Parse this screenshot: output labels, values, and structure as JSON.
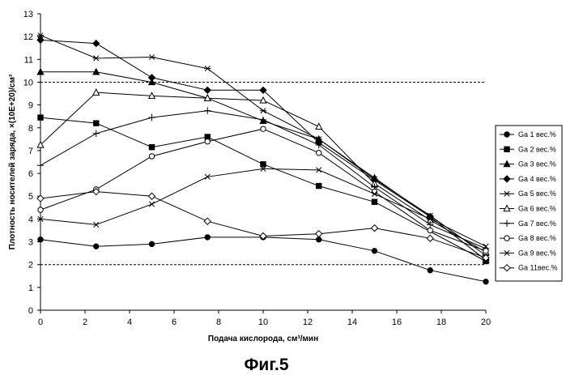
{
  "figure_caption": "Фиг.5",
  "chart_data": {
    "type": "line",
    "xlabel": "Подача кислорода, см³/мин",
    "ylabel": "Плотность носителей заряда, ×(10E+20)/см³",
    "xlim": [
      0,
      20
    ],
    "ylim": [
      0,
      13
    ],
    "x_ticks": [
      "0",
      "2",
      "4",
      "6",
      "8",
      "10",
      "12",
      "14",
      "16",
      "18",
      "20"
    ],
    "y_ticks": [
      "0",
      "1",
      "2",
      "3",
      "4",
      "5",
      "6",
      "7",
      "8",
      "9",
      "10",
      "11",
      "12",
      "13"
    ],
    "grid": false,
    "reference_lines": [
      2,
      10
    ],
    "legend_position": "right",
    "series": [
      {
        "name": "Ga 1 вес.%",
        "marker": "circle-filled",
        "x": [
          0,
          2.5,
          5,
          7.5,
          10,
          12.5,
          15,
          17.5,
          20
        ],
        "y": [
          3.1,
          2.8,
          2.9,
          3.2,
          3.2,
          3.1,
          2.6,
          1.75,
          1.25
        ]
      },
      {
        "name": "Ga 2 вес.%",
        "marker": "square-filled",
        "x": [
          0,
          2.5,
          5,
          7.5,
          10,
          12.5,
          15,
          20
        ],
        "y": [
          8.45,
          8.2,
          7.15,
          7.6,
          6.4,
          5.45,
          4.75,
          2.15
        ]
      },
      {
        "name": "Ga 3 вес.%",
        "marker": "triangle-filled",
        "x": [
          0,
          2.5,
          5,
          7.5,
          10,
          12.5,
          15,
          17.5,
          20
        ],
        "y": [
          10.45,
          10.45,
          10.0,
          9.3,
          8.3,
          7.5,
          5.8,
          4.1,
          2.2
        ]
      },
      {
        "name": "Ga 4 вес.%",
        "marker": "diamond-filled",
        "x": [
          0,
          2.5,
          5,
          7.5,
          10,
          12.5,
          15,
          17.5,
          20
        ],
        "y": [
          11.85,
          11.7,
          10.2,
          9.65,
          9.65,
          7.35,
          5.7,
          4.1,
          2.2
        ]
      },
      {
        "name": "Ga 5 вес.%",
        "marker": "asterisk",
        "x": [
          0,
          2.5,
          5,
          7.5,
          10,
          12.5,
          15,
          17.5,
          20
        ],
        "y": [
          12.05,
          11.05,
          11.1,
          10.6,
          8.75,
          7.5,
          5.75,
          4.15,
          2.4
        ]
      },
      {
        "name": "Ga 6 вес.%",
        "marker": "triangle-open",
        "x": [
          0,
          2.5,
          5,
          7.5,
          10,
          12.5,
          15,
          17.5,
          20
        ],
        "y": [
          7.25,
          9.55,
          9.4,
          9.3,
          9.2,
          8.05,
          5.55,
          3.95,
          2.55
        ]
      },
      {
        "name": "Ga 7 вес.%",
        "marker": "plus",
        "x": [
          0,
          2.5,
          5,
          7.5,
          10,
          12.5,
          15,
          17.5,
          20
        ],
        "y": [
          6.35,
          7.75,
          8.45,
          8.75,
          8.35,
          7.25,
          5.4,
          3.75,
          2.7
        ]
      },
      {
        "name": "Ga 8 вес.%",
        "marker": "circle-open",
        "x": [
          0,
          2.5,
          5,
          7.5,
          10,
          12.5,
          15,
          17.5,
          20
        ],
        "y": [
          4.4,
          5.3,
          6.75,
          7.4,
          7.95,
          6.9,
          5.2,
          3.5,
          2.6
        ]
      },
      {
        "name": "Ga 9 вес.%",
        "marker": "x",
        "x": [
          0,
          2.5,
          5,
          7.5,
          10,
          12.5,
          15,
          17.5,
          20
        ],
        "y": [
          4.0,
          3.75,
          4.65,
          5.85,
          6.2,
          6.15,
          5.1,
          4.0,
          2.8
        ]
      },
      {
        "name": "Ga 11вес.%",
        "marker": "diamond-open",
        "x": [
          0,
          2.5,
          5,
          7.5,
          10,
          12.5,
          15,
          17.5,
          20
        ],
        "y": [
          4.9,
          5.2,
          5.0,
          3.9,
          3.25,
          3.35,
          3.6,
          3.15,
          2.3
        ]
      }
    ]
  }
}
